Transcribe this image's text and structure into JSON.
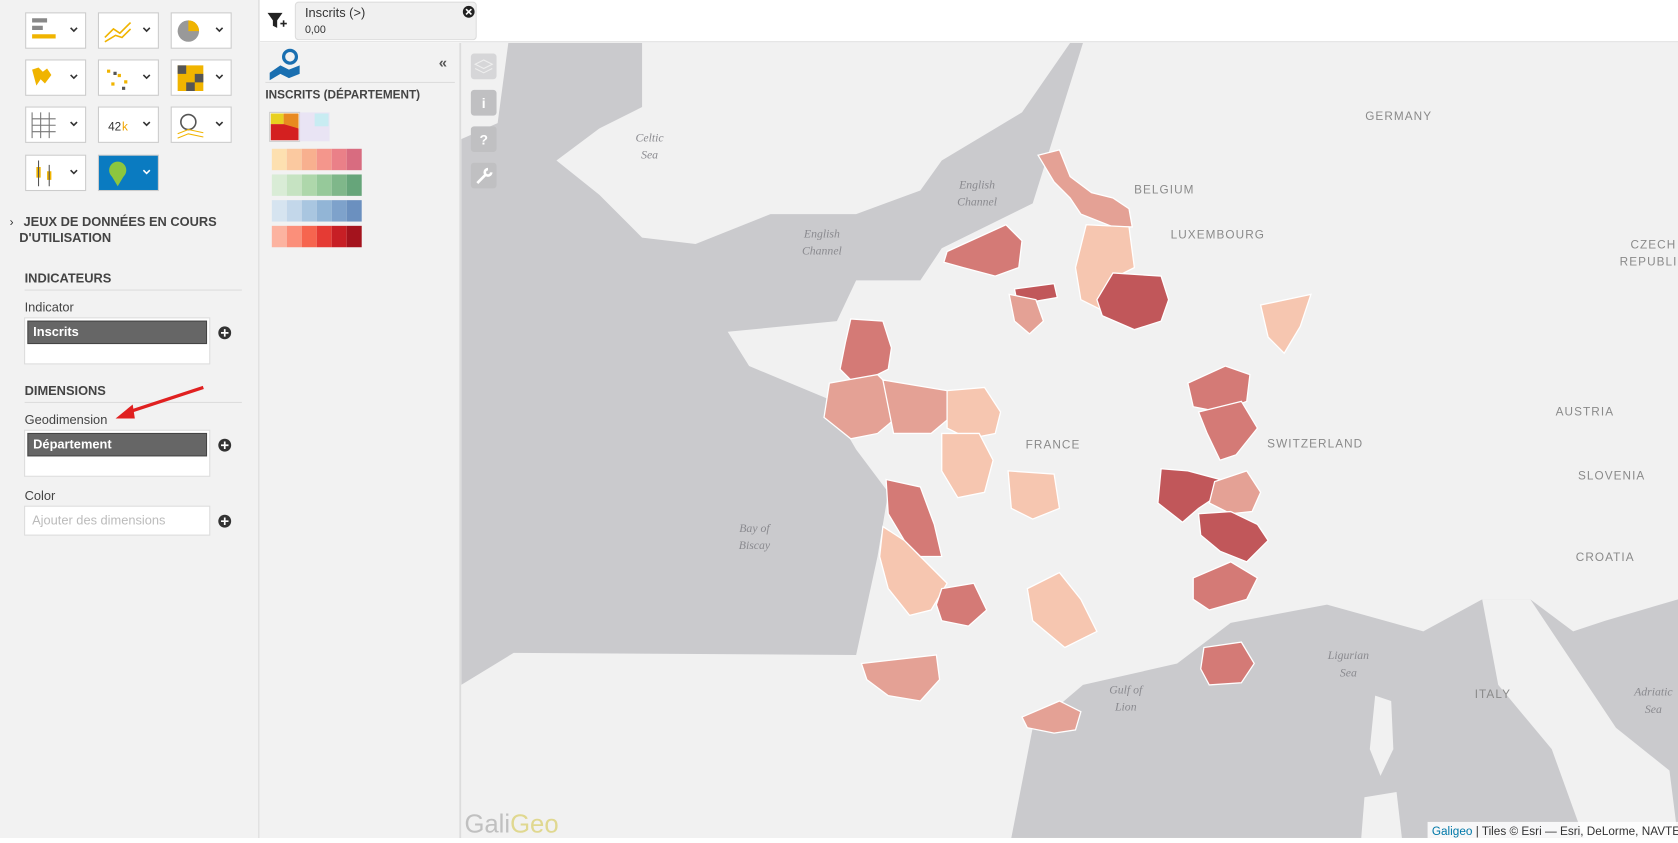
{
  "toolbar": {
    "number_button": [
      "42",
      "k"
    ]
  },
  "sidebar": {
    "datasets": [
      "JEUX DE DONNÉES EN COURS",
      "D'UTILISATION"
    ],
    "indicators": {
      "title": "INDICATEURS",
      "label": "Indicator",
      "value": "Inscrits"
    },
    "dimensions": {
      "title": "DIMENSIONS",
      "geodimension": {
        "label": "Geodimension",
        "value": "Département"
      },
      "color": {
        "label": "Color",
        "placeholder": "Ajouter des dimensions"
      }
    }
  },
  "filter": {
    "label": "Inscrits (>)",
    "value": "0,00"
  },
  "legend_panel": {
    "collapse": "«",
    "title": "INSCRITS (DÉPARTEMENT)"
  },
  "map": {
    "tools": [
      "i",
      "?"
    ],
    "labels": [
      {
        "lines": [
          "Celtic",
          "Sea"
        ]
      },
      {
        "lines": [
          "English",
          "Channel"
        ]
      },
      {
        "lines": [
          "English",
          "Channel"
        ]
      },
      {
        "lines": [
          "GERMANY"
        ]
      },
      {
        "lines": [
          "BELGIUM"
        ]
      },
      {
        "lines": [
          "LUXEMBOURG"
        ]
      },
      {
        "lines": [
          "CZECH",
          "REPUBLIC"
        ]
      },
      {
        "lines": [
          "AUSTRIA"
        ]
      },
      {
        "lines": [
          "SWITZERLAND"
        ]
      },
      {
        "lines": [
          "SLOVENIA"
        ]
      },
      {
        "lines": [
          "CROATIA"
        ]
      },
      {
        "lines": [
          "FRANCE"
        ]
      },
      {
        "lines": [
          "Bay of",
          "Biscay"
        ]
      },
      {
        "lines": [
          "Gulf of",
          "Lion"
        ]
      },
      {
        "lines": [
          "Ligurian",
          "Sea"
        ]
      },
      {
        "lines": [
          "ITALY"
        ]
      },
      {
        "lines": [
          "Adriatic",
          "Sea"
        ]
      }
    ],
    "watermark": [
      "Gali",
      "Geo"
    ],
    "attribution": {
      "link": "Galigeo",
      "text": "| Tiles © Esri — Esri, DeLorme, NAVTEQ"
    }
  }
}
